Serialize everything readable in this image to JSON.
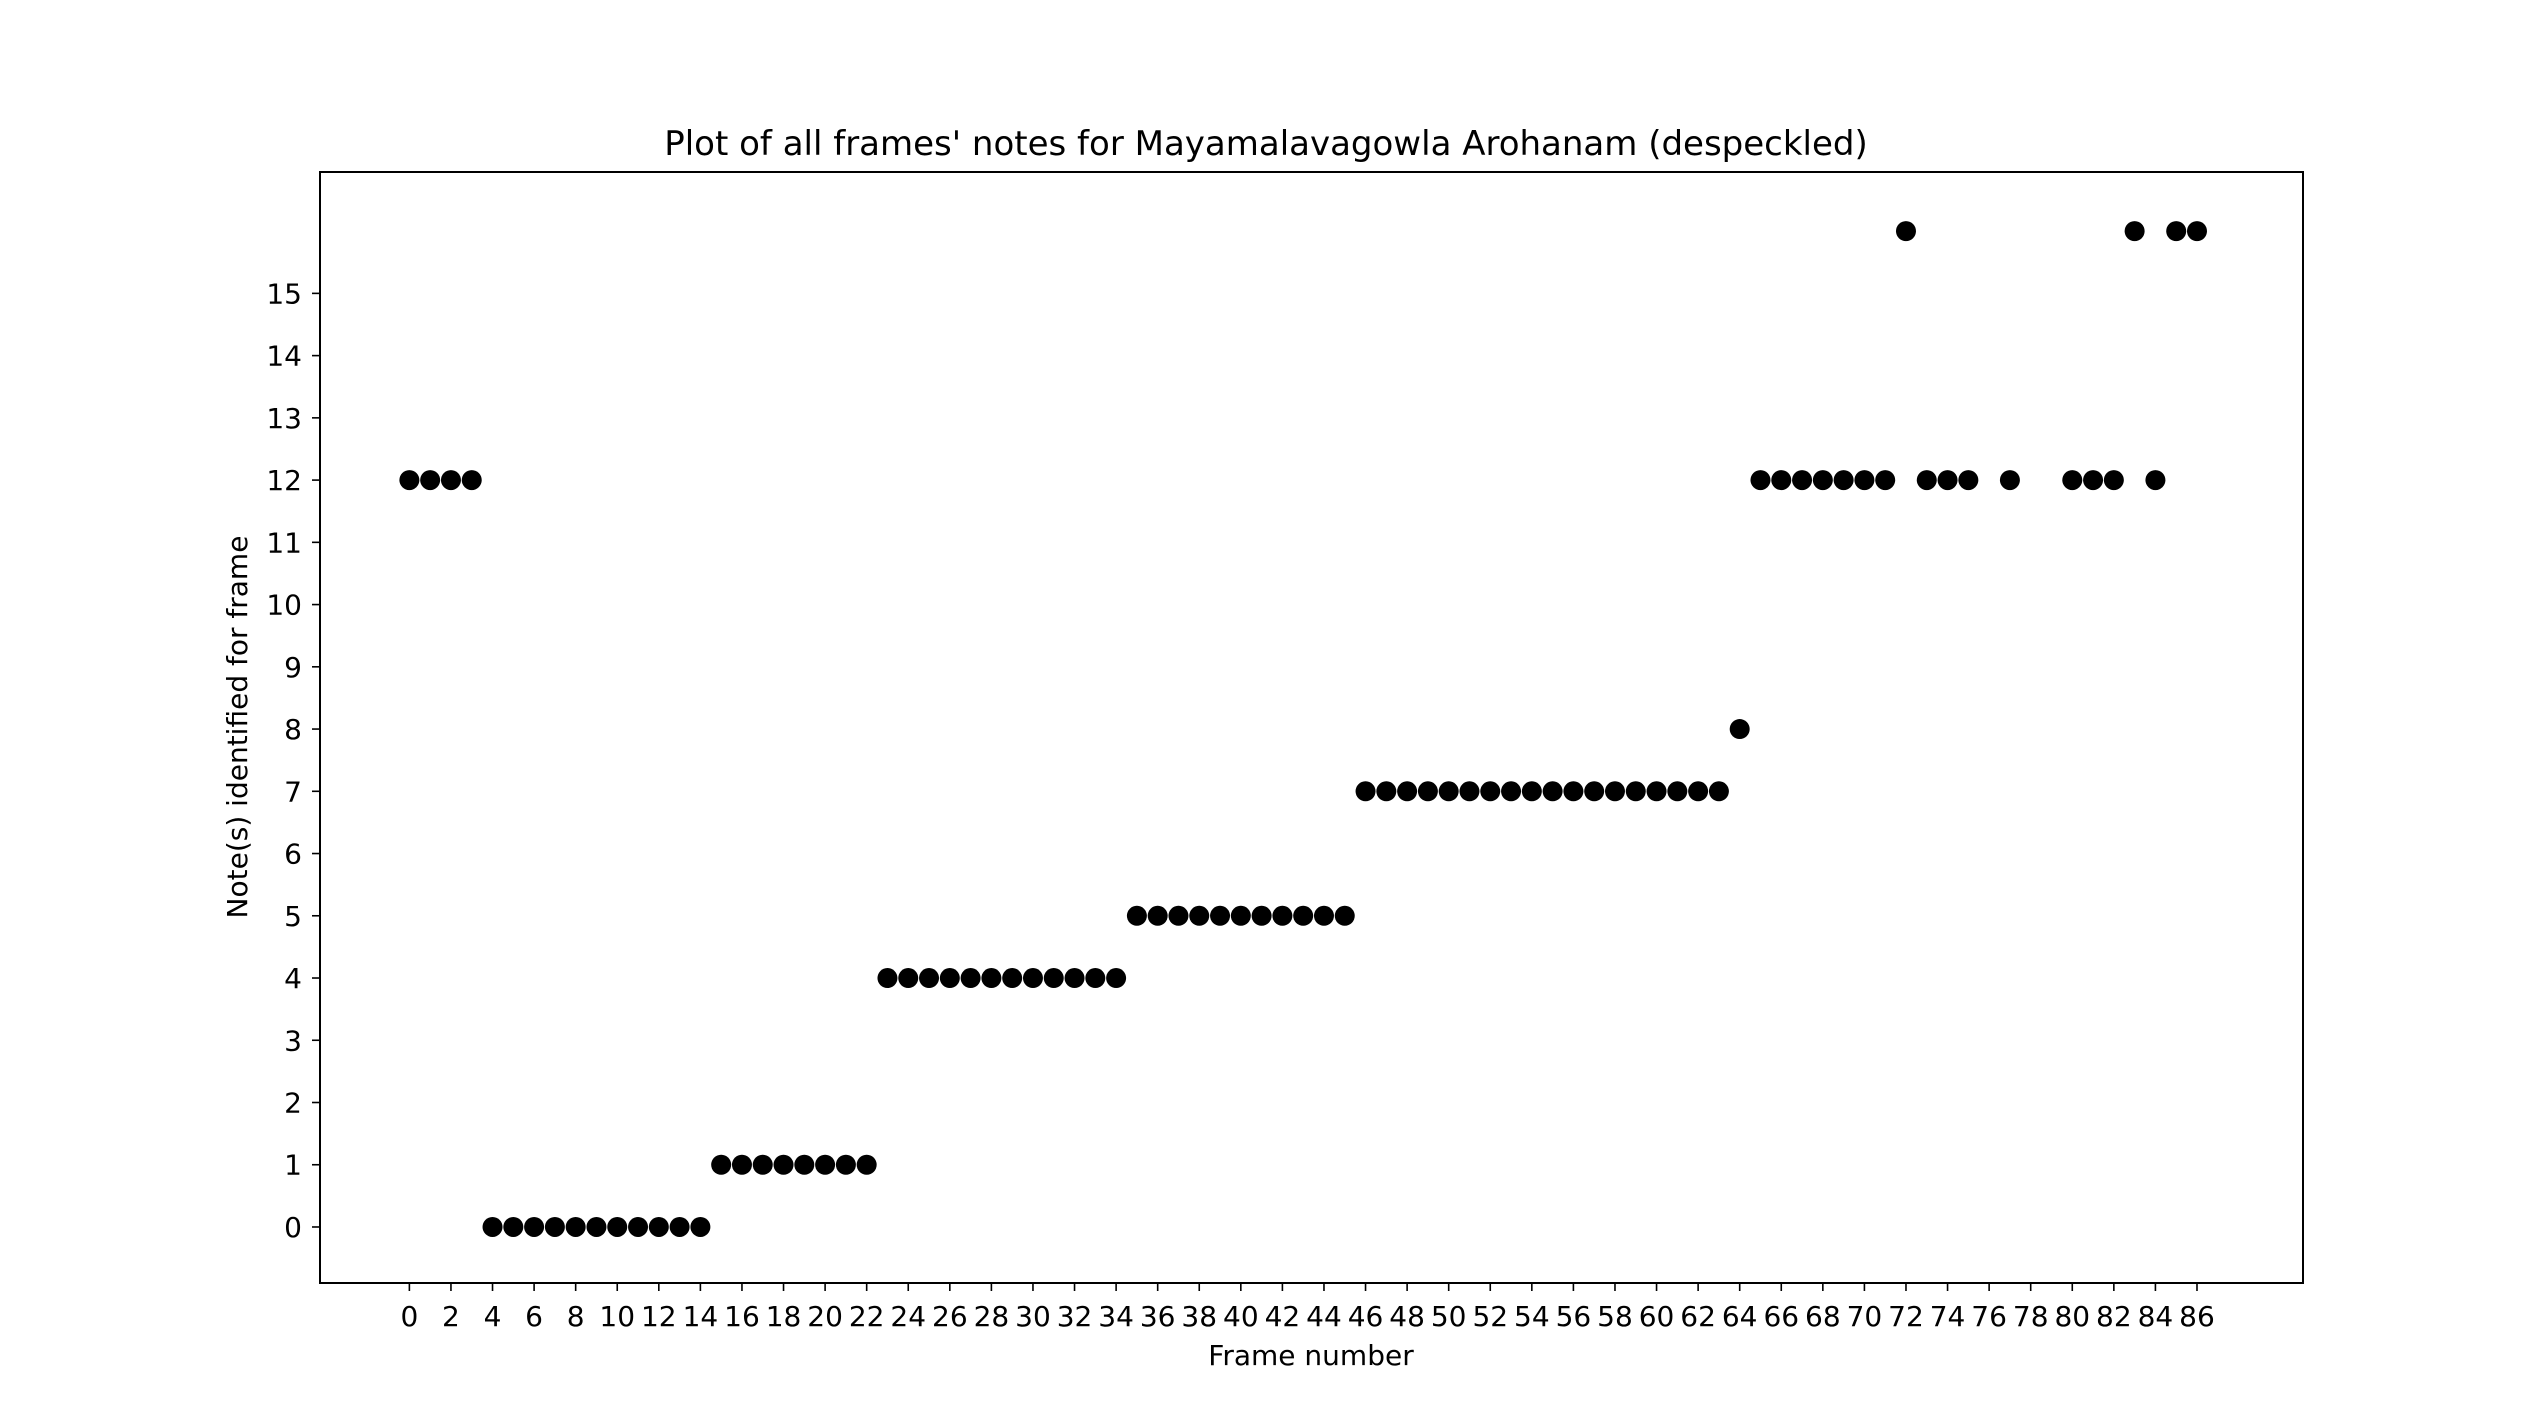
{
  "chart_data": {
    "type": "scatter",
    "title": "Plot of all frames' notes for Mayamalavagowla Arohanam (despeckled)",
    "xlabel": "Frame number",
    "ylabel": "Note(s) identified for frame",
    "xlim": [
      -4.3,
      91.1
    ],
    "ylim": [
      -0.9,
      16.95
    ],
    "x_ticks": [
      0,
      2,
      4,
      6,
      8,
      10,
      12,
      14,
      16,
      18,
      20,
      22,
      24,
      26,
      28,
      30,
      32,
      34,
      36,
      38,
      40,
      42,
      44,
      46,
      48,
      50,
      52,
      54,
      56,
      58,
      60,
      62,
      64,
      66,
      68,
      70,
      72,
      74,
      76,
      78,
      80,
      82,
      84,
      86
    ],
    "y_ticks": [
      0,
      1,
      2,
      3,
      4,
      5,
      6,
      7,
      8,
      9,
      10,
      11,
      12,
      13,
      14,
      15
    ],
    "grid": false,
    "marker_color": "#000000",
    "points": [
      [
        0,
        12
      ],
      [
        1,
        12
      ],
      [
        2,
        12
      ],
      [
        3,
        12
      ],
      [
        4,
        0
      ],
      [
        5,
        0
      ],
      [
        6,
        0
      ],
      [
        7,
        0
      ],
      [
        8,
        0
      ],
      [
        9,
        0
      ],
      [
        10,
        0
      ],
      [
        11,
        0
      ],
      [
        12,
        0
      ],
      [
        13,
        0
      ],
      [
        14,
        0
      ],
      [
        15,
        1
      ],
      [
        16,
        1
      ],
      [
        17,
        1
      ],
      [
        18,
        1
      ],
      [
        19,
        1
      ],
      [
        20,
        1
      ],
      [
        21,
        1
      ],
      [
        22,
        1
      ],
      [
        23,
        4
      ],
      [
        24,
        4
      ],
      [
        25,
        4
      ],
      [
        26,
        4
      ],
      [
        27,
        4
      ],
      [
        28,
        4
      ],
      [
        29,
        4
      ],
      [
        30,
        4
      ],
      [
        31,
        4
      ],
      [
        32,
        4
      ],
      [
        33,
        4
      ],
      [
        34,
        4
      ],
      [
        35,
        5
      ],
      [
        36,
        5
      ],
      [
        37,
        5
      ],
      [
        38,
        5
      ],
      [
        39,
        5
      ],
      [
        40,
        5
      ],
      [
        41,
        5
      ],
      [
        42,
        5
      ],
      [
        43,
        5
      ],
      [
        44,
        5
      ],
      [
        45,
        5
      ],
      [
        46,
        7
      ],
      [
        47,
        7
      ],
      [
        48,
        7
      ],
      [
        49,
        7
      ],
      [
        50,
        7
      ],
      [
        51,
        7
      ],
      [
        52,
        7
      ],
      [
        53,
        7
      ],
      [
        54,
        7
      ],
      [
        55,
        7
      ],
      [
        56,
        7
      ],
      [
        57,
        7
      ],
      [
        58,
        7
      ],
      [
        59,
        7
      ],
      [
        60,
        7
      ],
      [
        61,
        7
      ],
      [
        62,
        7
      ],
      [
        63,
        7
      ],
      [
        64,
        8
      ],
      [
        65,
        12
      ],
      [
        66,
        12
      ],
      [
        67,
        12
      ],
      [
        68,
        12
      ],
      [
        69,
        12
      ],
      [
        70,
        12
      ],
      [
        71,
        12
      ],
      [
        72,
        16
      ],
      [
        73,
        12
      ],
      [
        74,
        12
      ],
      [
        75,
        12
      ],
      [
        77,
        12
      ],
      [
        80,
        12
      ],
      [
        81,
        12
      ],
      [
        82,
        12
      ],
      [
        83,
        16
      ],
      [
        84,
        12
      ],
      [
        85,
        16
      ],
      [
        86,
        16
      ]
    ]
  }
}
